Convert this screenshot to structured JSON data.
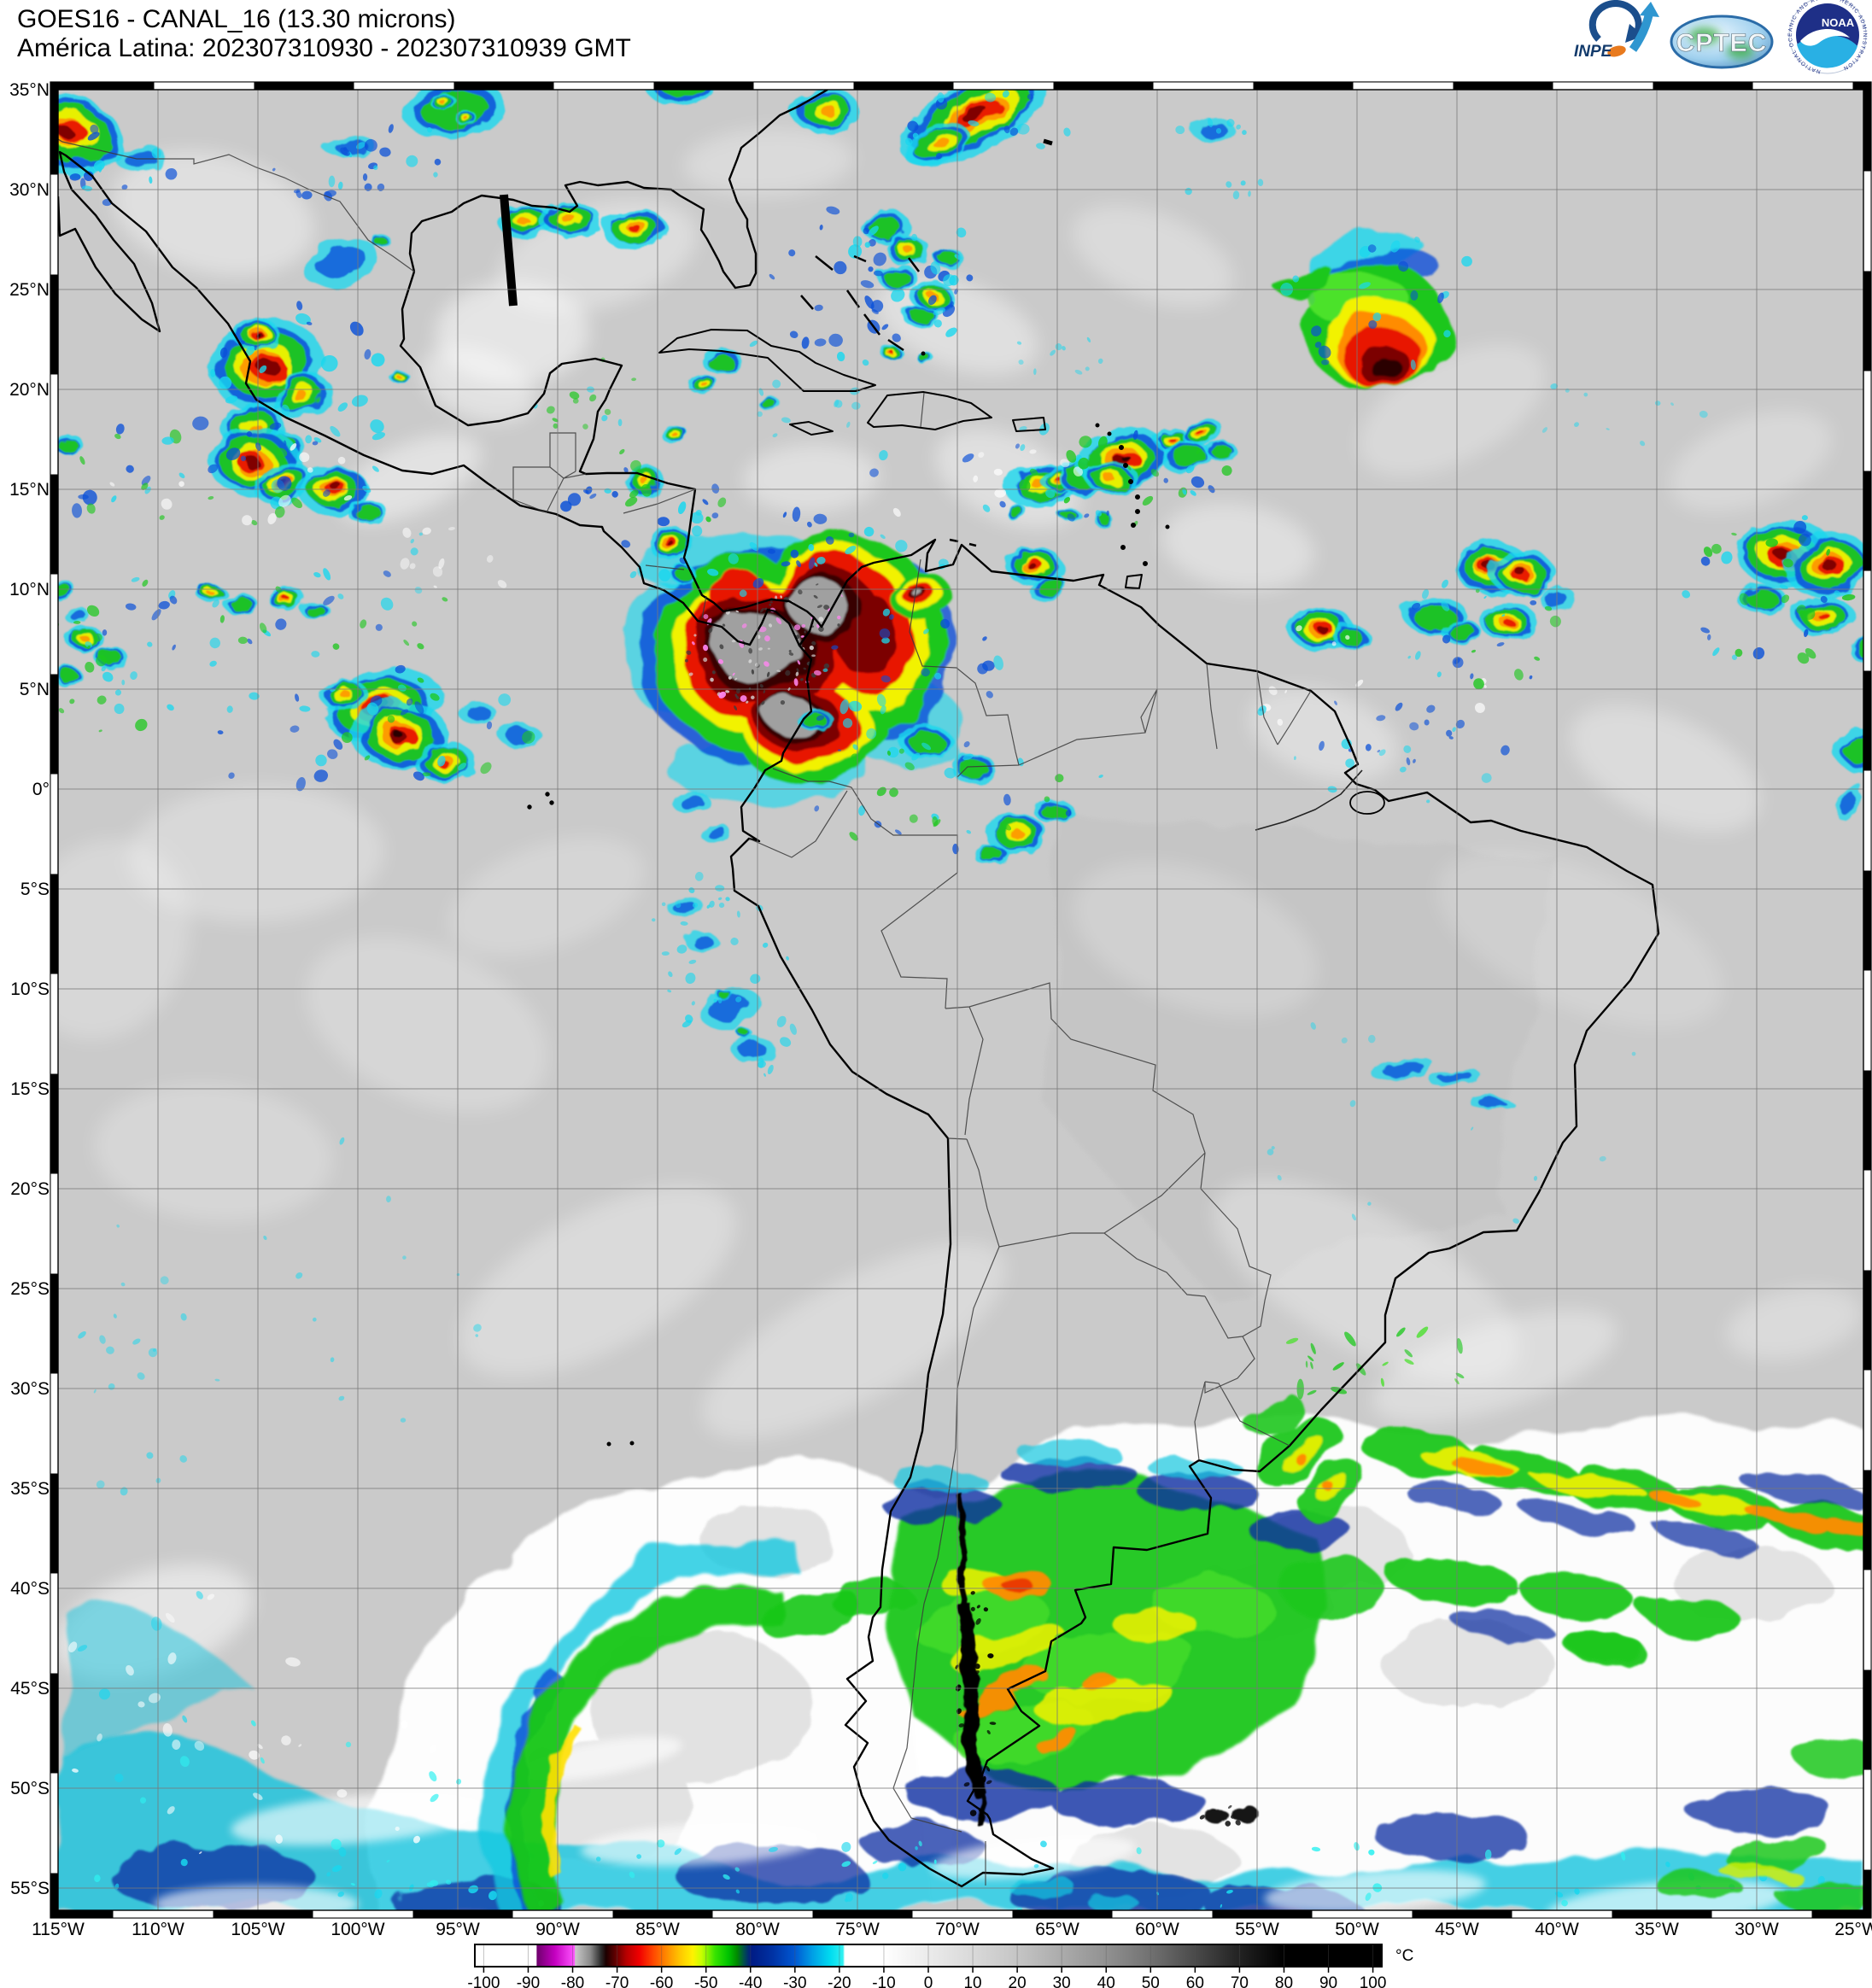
{
  "header": {
    "line1": "GOES16 - CANAL_16 (13.30 microns)",
    "line2": "América Latina: 202307310930 - 202307310939 GMT"
  },
  "logos": {
    "inpe_label": "INPE",
    "cptec_label": "CPTEC",
    "noaa_label": "NOAA",
    "noaa_ring_text": "NATIONAL OCEANIC AND ATMOSPHERIC ADMINISTRATION"
  },
  "map": {
    "lat_labels": [
      "35°N",
      "30°N",
      "25°N",
      "20°N",
      "15°N",
      "10°N",
      "5°N",
      "0°",
      "5°S",
      "10°S",
      "15°S",
      "20°S",
      "25°S",
      "30°S",
      "35°S",
      "40°S",
      "45°S",
      "50°S",
      "55°S"
    ],
    "lon_labels": [
      "115°W",
      "110°W",
      "105°W",
      "100°W",
      "95°W",
      "90°W",
      "85°W",
      "80°W",
      "75°W",
      "70°W",
      "65°W",
      "60°W",
      "55°W",
      "50°W",
      "45°W",
      "40°W",
      "35°W",
      "30°W",
      "25°W"
    ]
  },
  "colorbar": {
    "unit": "°C",
    "tick_values": [
      -100,
      -90,
      -80,
      -70,
      -60,
      -50,
      -40,
      -30,
      -20,
      -10,
      0,
      10,
      20,
      30,
      40,
      50,
      60,
      70,
      80,
      90,
      100
    ],
    "palette": [
      [
        -102,
        "#ffffff"
      ],
      [
        -88.2,
        "#ffffff"
      ],
      [
        -88,
        "#70006e"
      ],
      [
        -84,
        "#c400c0"
      ],
      [
        -79.6,
        "#ff55ff"
      ],
      [
        -79.4,
        "#c8c8c8"
      ],
      [
        -76,
        "#8a8a8a"
      ],
      [
        -73.6,
        "#2a2a2a"
      ],
      [
        -72.5,
        "#1c0000"
      ],
      [
        -70,
        "#6e0000"
      ],
      [
        -68,
        "#b40000"
      ],
      [
        -65,
        "#f00000"
      ],
      [
        -62,
        "#ff4400"
      ],
      [
        -59,
        "#ff8800"
      ],
      [
        -56,
        "#ffc400"
      ],
      [
        -53,
        "#fff200"
      ],
      [
        -51,
        "#c8ff00"
      ],
      [
        -48,
        "#38e400"
      ],
      [
        -45,
        "#00c400"
      ],
      [
        -43,
        "#008a00"
      ],
      [
        -41.5,
        "#00504a"
      ],
      [
        -40,
        "#001a82"
      ],
      [
        -35,
        "#0032a4"
      ],
      [
        -30,
        "#0058d2"
      ],
      [
        -26,
        "#00a0e6"
      ],
      [
        -22,
        "#00dcf0"
      ],
      [
        -19.2,
        "#30f0f0"
      ],
      [
        -18.8,
        "#ffffff"
      ],
      [
        -10,
        "#ffffff"
      ],
      [
        0,
        "#ebebeb"
      ],
      [
        10,
        "#d9d9d9"
      ],
      [
        20,
        "#c5c5c5"
      ],
      [
        30,
        "#ababab"
      ],
      [
        40,
        "#919191"
      ],
      [
        50,
        "#717171"
      ],
      [
        60,
        "#4a4a4a"
      ],
      [
        70,
        "#222222"
      ],
      [
        80,
        "#000000"
      ],
      [
        102,
        "#000000"
      ]
    ]
  }
}
